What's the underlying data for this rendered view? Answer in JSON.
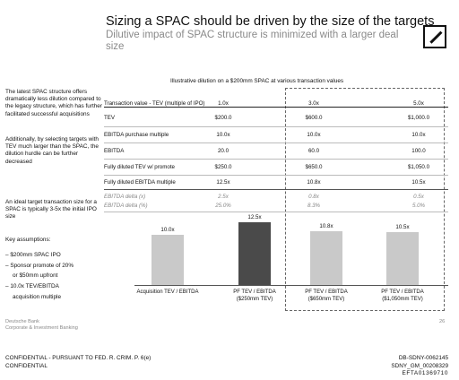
{
  "header": {
    "title": "Sizing a SPAC should be driven by the size of the targets",
    "subtitle": "Dilutive impact of SPAC structure is minimized with a larger deal size",
    "logo_icon": "deutsche-bank-logo-icon"
  },
  "sidebar": {
    "para1": "The latest SPAC structure offers dramatically less dilution compared to the legacy structure, which has further facilitated successful acquisitions",
    "para2": "Additionally, by selecting targets with TEV much larger than the SPAC, the dilution hurdle can be further decreased",
    "para3": "An ideal target transaction size for a SPAC is typically 3-5x the initial IPO size",
    "assumptions_title": "Key assumptions:",
    "assumptions": [
      "– $200mm SPAC IPO",
      "– Sponsor promote of 20%",
      "or $50mm upfront",
      "– 10.0x TEV/EBITDA",
      "acquisition multiple"
    ]
  },
  "table": {
    "title": "Illustrative dilution on a $200mm SPAC at various transaction values",
    "header": {
      "label": "Transaction value - TEV (multiple of IPO)",
      "values": [
        "1.0x",
        "3.0x",
        "5.0x"
      ]
    },
    "rows": [
      {
        "label": "TEV",
        "values": [
          "$200.0",
          "$600.0",
          "$1,000.0"
        ]
      },
      {
        "label": "EBITDA purchase multiple",
        "values": [
          "10.0x",
          "10.0x",
          "10.0x"
        ]
      },
      {
        "label": "EBITDA",
        "values": [
          "20.0",
          "60.0",
          "100.0"
        ]
      },
      {
        "label": "Fully diluted TEV w/ promote",
        "values": [
          "$250.0",
          "$650.0",
          "$1,050.0"
        ]
      },
      {
        "label": "Fully diluted EBITDA multiple",
        "values": [
          "12.5x",
          "10.8x",
          "10.5x"
        ]
      }
    ],
    "delta_rows": [
      {
        "label": "EBITDA delta (x)",
        "values": [
          "2.5x",
          "0.8x",
          "0.5x"
        ]
      },
      {
        "label": "EBITDA delta (%)",
        "values": [
          "25.0%",
          "8.3%",
          "5.0%"
        ]
      }
    ]
  },
  "chart_data": {
    "type": "bar",
    "categories": [
      "Acquisition TEV / EBITDA",
      "PF TEV / EBITDA ($250mm TEV)",
      "PF TEV / EBITDA ($650mm TEV)",
      "PF TEV / EBITDA ($1,050mm TEV)"
    ],
    "category_lines": [
      [
        "Acquisition TEV / EBITDA"
      ],
      [
        "PF TEV / EBITDA",
        "($250mm TEV)"
      ],
      [
        "PF TEV / EBITDA",
        "($650mm TEV)"
      ],
      [
        "PF TEV / EBITDA",
        "($1,050mm TEV)"
      ]
    ],
    "values": [
      10.0,
      12.5,
      10.8,
      10.5
    ],
    "labels": [
      "10.0x",
      "12.5x",
      "10.8x",
      "10.5x"
    ],
    "highlight_index": 1,
    "colors": {
      "default": "#c9c9c9",
      "highlight": "#4a4a4a"
    },
    "ylim": [
      0,
      13
    ]
  },
  "footer": {
    "bank": "Deutsche Bank",
    "division": "Corporate & Investment Banking",
    "page": "26",
    "confidential1": "CONFIDENTIAL - PURSUANT TO FED. R. CRIM. P. 6(e)",
    "confidential2": "CONFIDENTIAL",
    "bates1": "DB-SDNY-0062145",
    "bates2": "SDNY_GM_00208329",
    "bates3": "EFTA01369710"
  }
}
